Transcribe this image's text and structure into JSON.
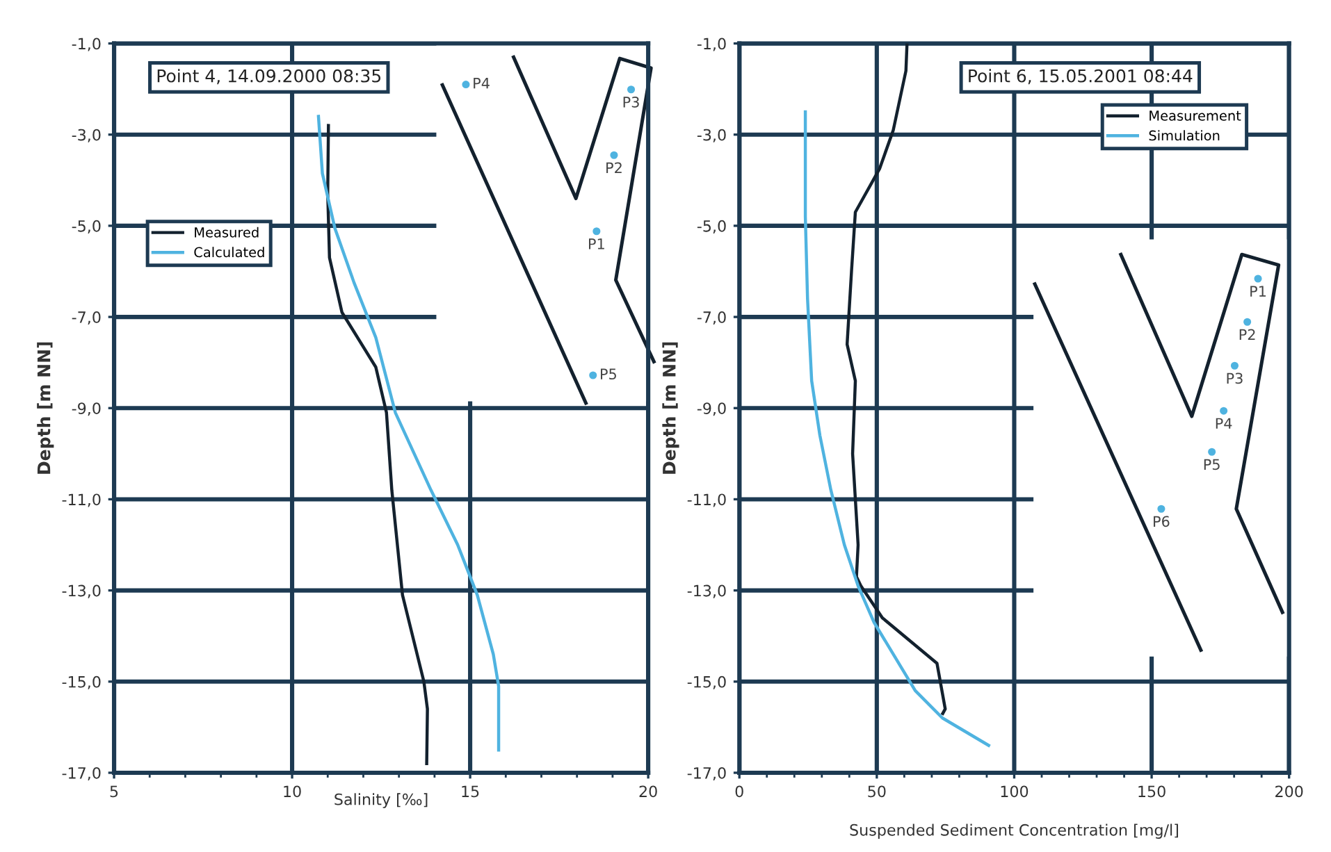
{
  "chart_data": [
    {
      "type": "line",
      "title": "Point 4, 14.09.2000 08:35",
      "xlabel": "Salinity [‰]",
      "ylabel": "Depth [m NN]",
      "xlim": [
        5,
        20
      ],
      "ylim": [
        -17,
        -1
      ],
      "xticks": [
        5,
        {
          "value": 6,
          "label": null
        },
        {
          "value": 7,
          "label": null
        },
        {
          "value": 8,
          "label": null
        },
        {
          "value": 9,
          "label": null
        },
        10,
        {
          "value": 11,
          "label": null
        },
        {
          "value": 12,
          "label": null
        },
        {
          "value": 13,
          "label": null
        },
        {
          "value": 14,
          "label": null
        },
        15,
        {
          "value": 16,
          "label": null
        },
        {
          "value": 17,
          "label": null
        },
        {
          "value": 18,
          "label": null
        },
        {
          "value": 19,
          "label": null
        },
        20
      ],
      "yticks": [
        {
          "value": -1,
          "label": "-1,0"
        },
        {
          "value": -3,
          "label": "-3,0"
        },
        {
          "value": -5,
          "label": "-5,0"
        },
        {
          "value": -7,
          "label": "-7,0"
        },
        {
          "value": -9,
          "label": "-9,0"
        },
        {
          "value": -11,
          "label": "-11,0"
        },
        {
          "value": -13,
          "label": "-13,0"
        },
        {
          "value": -15,
          "label": "-15,0"
        },
        {
          "value": -17,
          "label": "-17,0"
        }
      ],
      "grid": true,
      "legend": "upper left",
      "marker": "none",
      "line_style": "solid",
      "annotations": [
        "P1",
        "P2",
        "P3",
        "P4",
        "P5"
      ],
      "series": [
        {
          "name": "Measured",
          "color": "#13212e",
          "x": [
            11.02,
            11.0,
            11.05,
            11.4,
            12.35,
            12.65,
            12.8,
            13.1,
            13.7,
            13.8,
            13.78
          ],
          "values": [
            -2.8,
            -4.3,
            -5.7,
            -6.9,
            -8.1,
            -9.1,
            -10.8,
            -13.1,
            -15.0,
            -15.6,
            -16.8
          ]
        },
        {
          "name": "Calculated",
          "color": "#4fb3e0",
          "x": [
            10.74,
            10.85,
            11.2,
            11.74,
            12.35,
            12.9,
            13.9,
            14.65,
            15.2,
            15.65,
            15.8,
            15.8
          ],
          "values": [
            -2.6,
            -3.85,
            -5.05,
            -6.25,
            -7.45,
            -9.1,
            -10.8,
            -12.0,
            -13.1,
            -14.4,
            -15.1,
            -16.5
          ]
        }
      ]
    },
    {
      "type": "line",
      "title": "Point 6, 15.05.2001 08:44",
      "xlabel": "Suspended Sediment Concentration [mg/l]",
      "ylabel": "Depth [m NN]",
      "xlim": [
        0,
        200
      ],
      "ylim": [
        -17,
        -1
      ],
      "xticks": [
        0,
        {
          "value": 10,
          "label": null
        },
        {
          "value": 20,
          "label": null
        },
        {
          "value": 30,
          "label": null
        },
        {
          "value": 40,
          "label": null
        },
        50,
        {
          "value": 60,
          "label": null
        },
        {
          "value": 70,
          "label": null
        },
        {
          "value": 80,
          "label": null
        },
        {
          "value": 90,
          "label": null
        },
        100,
        {
          "value": 110,
          "label": null
        },
        {
          "value": 120,
          "label": null
        },
        {
          "value": 130,
          "label": null
        },
        {
          "value": 140,
          "label": null
        },
        150,
        {
          "value": 160,
          "label": null
        },
        {
          "value": 170,
          "label": null
        },
        {
          "value": 180,
          "label": null
        },
        {
          "value": 190,
          "label": null
        },
        200
      ],
      "yticks": [
        {
          "value": -1,
          "label": "-1,0"
        },
        {
          "value": -3,
          "label": "-3,0"
        },
        {
          "value": -5,
          "label": "-5,0"
        },
        {
          "value": -7,
          "label": "-7,0"
        },
        {
          "value": -9,
          "label": "-9,0"
        },
        {
          "value": -11,
          "label": "-11,0"
        },
        {
          "value": -13,
          "label": "-13,0"
        },
        {
          "value": -15,
          "label": "-15,0"
        },
        {
          "value": -17,
          "label": "-17,0"
        }
      ],
      "grid": true,
      "legend": "upper right",
      "marker": "none",
      "line_style": "solid",
      "annotations": [
        "P1",
        "P2",
        "P3",
        "P4",
        "P5",
        "P6"
      ],
      "series": [
        {
          "name": "Measurement",
          "color": "#13212e",
          "x": [
            61,
            60.6,
            56,
            51,
            42.2,
            40.8,
            39.2,
            42.2,
            41.2,
            43.2,
            42.6,
            44.2,
            52,
            71.9,
            74.9,
            74
          ],
          "values": [
            -1.0,
            -1.6,
            -2.9,
            -3.75,
            -4.7,
            -6.0,
            -7.6,
            -8.4,
            -10.0,
            -12.0,
            -12.7,
            -12.9,
            -13.6,
            -14.6,
            -15.6,
            -15.7
          ]
        },
        {
          "name": "Simulation",
          "color": "#4fb3e0",
          "x": [
            24,
            24,
            24.8,
            26.3,
            29.3,
            33.3,
            38.2,
            43.2,
            49,
            56,
            64,
            73.9,
            90.7
          ],
          "values": [
            -2.5,
            -4.8,
            -6.6,
            -8.4,
            -9.6,
            -10.8,
            -12.0,
            -12.9,
            -13.7,
            -14.4,
            -15.2,
            -15.8,
            -16.4
          ]
        }
      ]
    }
  ]
}
